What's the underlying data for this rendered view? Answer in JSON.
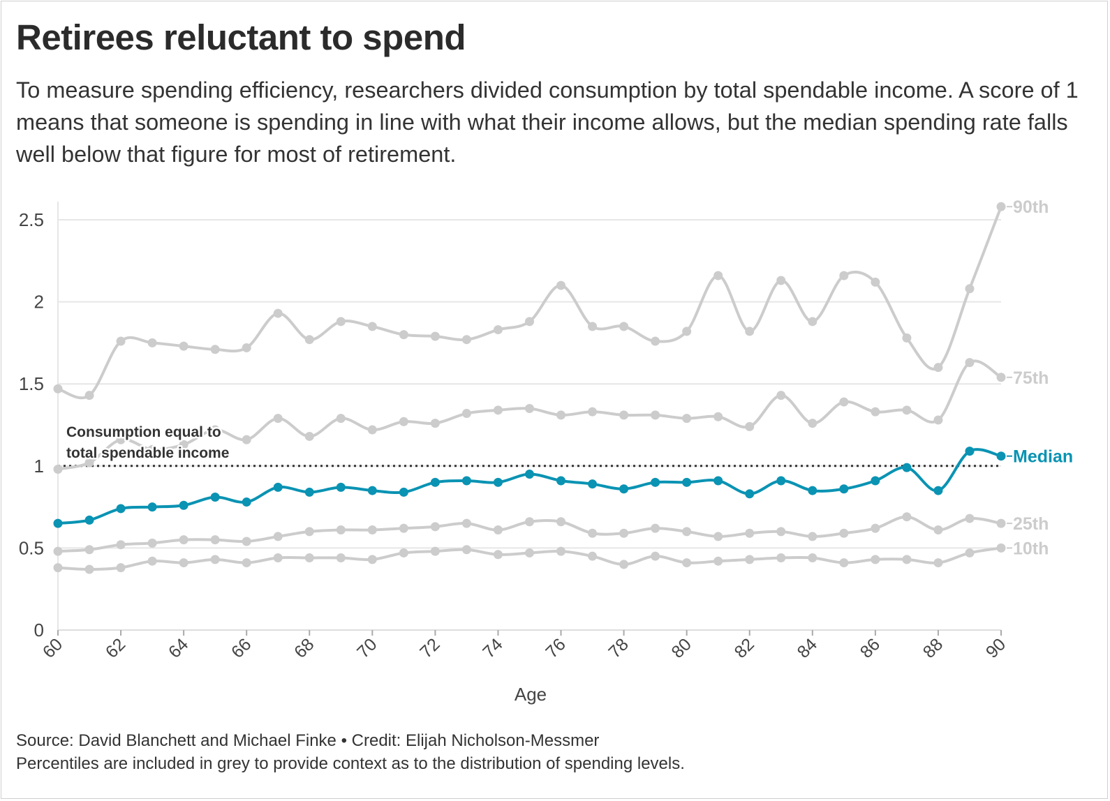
{
  "header": {
    "title": "Retirees reluctant to spend",
    "subtitle": "To measure spending efficiency, researchers divided consumption by total spendable income. A score of 1 means that someone is spending in line with what their income allows, but the median spending rate falls well below that figure for most of retirement."
  },
  "footer": {
    "source": "Source: David Blanchett and Michael Finke • Credit: Elijah Nicholson-Messmer",
    "note": "Percentiles are included in grey to provide context as to the distribution of spending levels."
  },
  "colors": {
    "median": "#0a93b3",
    "percentile": "#cccccc",
    "reference": "#333333"
  },
  "chart_data": {
    "type": "line",
    "xlabel": "Age",
    "ylabel": "",
    "xlim": [
      60,
      90
    ],
    "ylim": [
      0,
      2.6
    ],
    "x_ticks": [
      60,
      62,
      64,
      66,
      68,
      70,
      72,
      74,
      76,
      78,
      80,
      82,
      84,
      86,
      88,
      90
    ],
    "y_ticks": [
      {
        "value": 0,
        "label": "0"
      },
      {
        "value": 0.5,
        "label": "0.5"
      },
      {
        "value": 1,
        "label": "1"
      },
      {
        "value": 1.5,
        "label": "1.5"
      },
      {
        "value": 2,
        "label": "2"
      },
      {
        "value": 2.5,
        "label": "2.5"
      }
    ],
    "grid": true,
    "x": [
      60,
      61,
      62,
      63,
      64,
      65,
      66,
      67,
      68,
      69,
      70,
      71,
      72,
      73,
      74,
      75,
      76,
      77,
      78,
      79,
      80,
      81,
      82,
      83,
      84,
      85,
      86,
      87,
      88,
      89,
      90
    ],
    "series": [
      {
        "name": "10th",
        "highlight": false,
        "values": [
          0.38,
          0.37,
          0.38,
          0.42,
          0.41,
          0.43,
          0.41,
          0.44,
          0.44,
          0.44,
          0.43,
          0.47,
          0.48,
          0.49,
          0.46,
          0.47,
          0.48,
          0.45,
          0.4,
          0.45,
          0.41,
          0.42,
          0.43,
          0.44,
          0.44,
          0.41,
          0.43,
          0.43,
          0.41,
          0.47,
          0.5
        ]
      },
      {
        "name": "25th",
        "highlight": false,
        "values": [
          0.48,
          0.49,
          0.52,
          0.53,
          0.55,
          0.55,
          0.54,
          0.57,
          0.6,
          0.61,
          0.61,
          0.62,
          0.63,
          0.65,
          0.61,
          0.66,
          0.66,
          0.59,
          0.59,
          0.62,
          0.6,
          0.57,
          0.59,
          0.6,
          0.57,
          0.59,
          0.62,
          0.69,
          0.61,
          0.68,
          0.65
        ]
      },
      {
        "name": "75th",
        "highlight": false,
        "values": [
          0.98,
          1.02,
          1.16,
          1.1,
          1.13,
          1.22,
          1.16,
          1.29,
          1.18,
          1.29,
          1.22,
          1.27,
          1.26,
          1.32,
          1.34,
          1.35,
          1.31,
          1.33,
          1.31,
          1.31,
          1.29,
          1.3,
          1.24,
          1.43,
          1.26,
          1.39,
          1.33,
          1.34,
          1.28,
          1.63,
          1.54
        ]
      },
      {
        "name": "90th",
        "highlight": false,
        "values": [
          1.47,
          1.43,
          1.76,
          1.75,
          1.73,
          1.71,
          1.72,
          1.93,
          1.77,
          1.88,
          1.85,
          1.8,
          1.79,
          1.77,
          1.83,
          1.88,
          2.1,
          1.85,
          1.85,
          1.76,
          1.82,
          2.16,
          1.82,
          2.13,
          1.88,
          2.16,
          2.12,
          1.78,
          1.6,
          2.08,
          2.58
        ]
      },
      {
        "name": "Median",
        "highlight": true,
        "values": [
          0.65,
          0.67,
          0.74,
          0.75,
          0.76,
          0.81,
          0.78,
          0.87,
          0.84,
          0.87,
          0.85,
          0.84,
          0.9,
          0.91,
          0.9,
          0.95,
          0.91,
          0.89,
          0.86,
          0.9,
          0.9,
          0.91,
          0.83,
          0.91,
          0.85,
          0.86,
          0.91,
          0.99,
          0.85,
          1.09,
          1.06
        ]
      }
    ],
    "reference_line": {
      "value": 1,
      "style": "dotted"
    },
    "annotations": [
      {
        "text_line1": "Consumption equal to",
        "text_line2": "total spendable income"
      }
    ]
  }
}
